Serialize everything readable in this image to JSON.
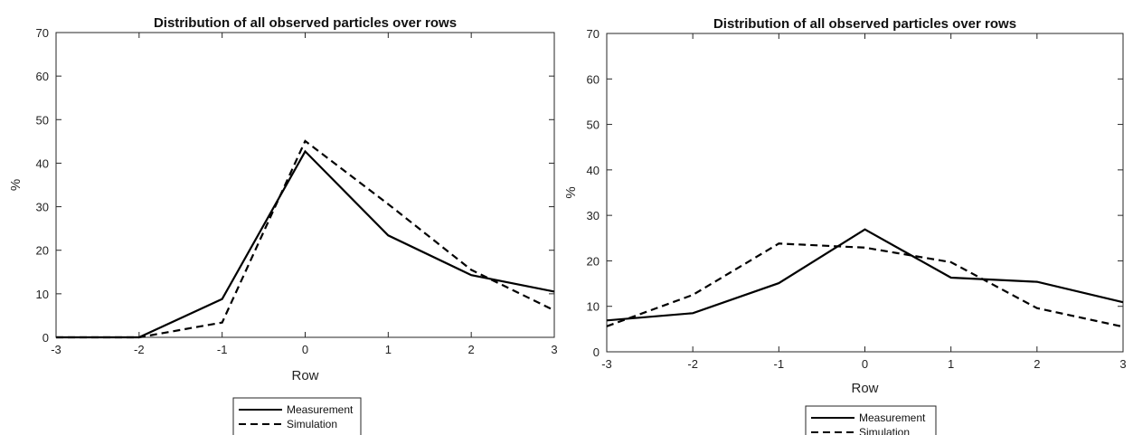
{
  "chart_data": [
    {
      "type": "line",
      "title": "Distribution of all observed particles over rows",
      "xlabel": "Row",
      "ylabel": "%",
      "xlim": [
        -3,
        3
      ],
      "ylim": [
        0,
        70
      ],
      "xticks": [
        -3,
        -2,
        -1,
        0,
        1,
        2,
        3
      ],
      "yticks": [
        0,
        10,
        20,
        30,
        40,
        50,
        60,
        70
      ],
      "grid": false,
      "legend_position": "bottom-center",
      "series": [
        {
          "name": "Measurement",
          "style": "solid",
          "x": [
            -3,
            -2,
            -1,
            0,
            1,
            2,
            3
          ],
          "y": [
            0,
            0,
            8.8,
            42.7,
            23.4,
            14.3,
            10.5
          ]
        },
        {
          "name": "Simulation",
          "style": "dashed",
          "x": [
            -3,
            -2,
            -1,
            0,
            1,
            2,
            3
          ],
          "y": [
            0,
            0,
            3.4,
            45.1,
            30.6,
            15.5,
            6.2
          ]
        }
      ]
    },
    {
      "type": "line",
      "title": "Distribution of all observed particles over rows",
      "xlabel": "Row",
      "ylabel": "%",
      "xlim": [
        -3,
        3
      ],
      "ylim": [
        0,
        70
      ],
      "xticks": [
        -3,
        -2,
        -1,
        0,
        1,
        2,
        3
      ],
      "yticks": [
        0,
        10,
        20,
        30,
        40,
        50,
        60,
        70
      ],
      "grid": false,
      "legend_position": "bottom-center",
      "series": [
        {
          "name": "Measurement",
          "style": "solid",
          "x": [
            -3,
            -2,
            -1,
            0,
            1,
            2,
            3
          ],
          "y": [
            6.9,
            8.5,
            15.1,
            26.9,
            16.3,
            15.4,
            10.9
          ]
        },
        {
          "name": "Simulation",
          "style": "dashed",
          "x": [
            -3,
            -2,
            -1,
            0,
            1,
            2,
            3
          ],
          "y": [
            5.6,
            12.5,
            23.8,
            22.9,
            19.7,
            9.6,
            5.5
          ]
        }
      ]
    }
  ]
}
